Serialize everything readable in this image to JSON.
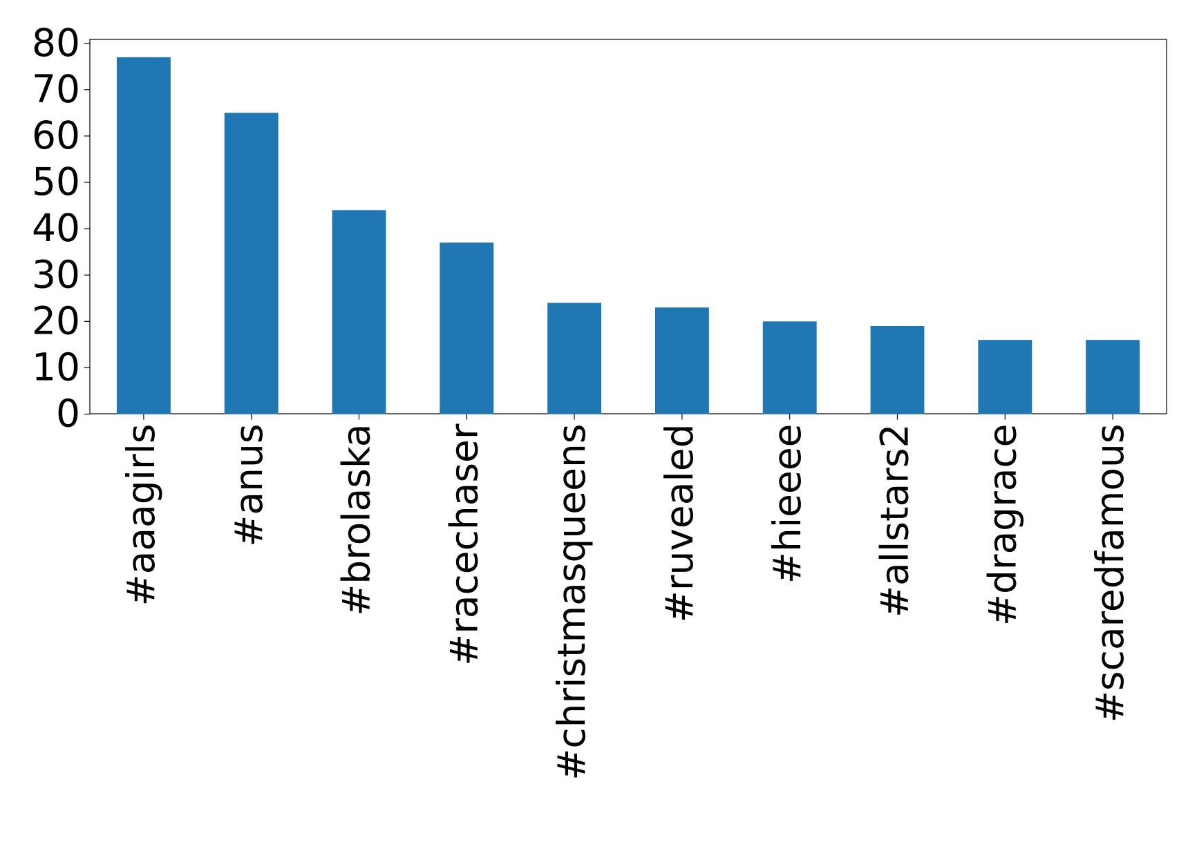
{
  "chart_data": {
    "type": "bar",
    "categories": [
      "#aaagirls",
      "#anus",
      "#brolaska",
      "#racechaser",
      "#christmasqueens",
      "#ruvealed",
      "#hieeee",
      "#allstars2",
      "#dragrace",
      "#scaredfamous"
    ],
    "values": [
      77,
      65,
      44,
      37,
      24,
      23,
      20,
      19,
      16,
      16
    ],
    "color": "#1f77b4",
    "ylim": [
      0,
      80.85
    ],
    "yticks": [
      0,
      10,
      20,
      30,
      40,
      50,
      60,
      70,
      80
    ],
    "grid": false
  }
}
